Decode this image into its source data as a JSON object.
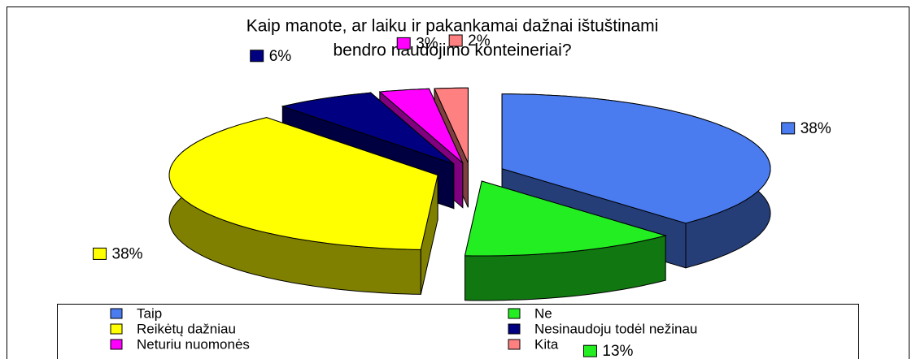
{
  "chart_data": {
    "type": "pie3d",
    "title": [
      "Kaip manote, ar laiku ir pakankamai dažnai ištuštinami",
      "bendro naudojimo konteineriai?"
    ],
    "categories": [
      "Taip",
      "Ne",
      "Reikėtų dažniau",
      "Nesinaudoju todėl nežinau",
      "Neturiu nuomonės",
      "Kita"
    ],
    "values": [
      38,
      13,
      38,
      6,
      3,
      2
    ],
    "value_labels": [
      "38%",
      "13%",
      "38%",
      "6%",
      "3%",
      "2%"
    ],
    "colors": [
      "#4a7cf0",
      "#22ee22",
      "#ffff00",
      "#000080",
      "#ff00ff",
      "#ff8080"
    ],
    "legend": "bottom"
  }
}
